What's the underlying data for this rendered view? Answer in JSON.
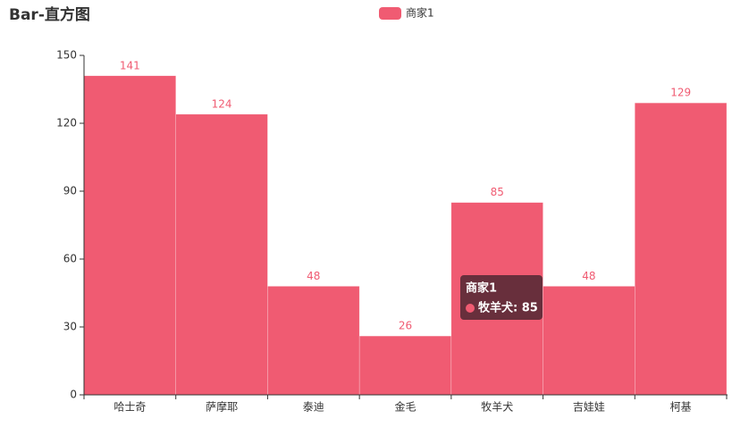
{
  "chart_data": {
    "type": "bar",
    "title": "Bar-直方图",
    "categories": [
      "哈士奇",
      "萨摩耶",
      "泰迪",
      "金毛",
      "牧羊犬",
      "吉娃娃",
      "柯基"
    ],
    "series": [
      {
        "name": "商家1",
        "color": "#f05b72",
        "values": [
          141,
          124,
          48,
          26,
          85,
          48,
          129
        ]
      }
    ],
    "ylim": [
      0,
      150
    ],
    "yticks": [
      0,
      30,
      60,
      90,
      120,
      150
    ],
    "legend": "top",
    "tooltip": {
      "category_index": 4,
      "text": "牧羊犬: 85"
    }
  }
}
